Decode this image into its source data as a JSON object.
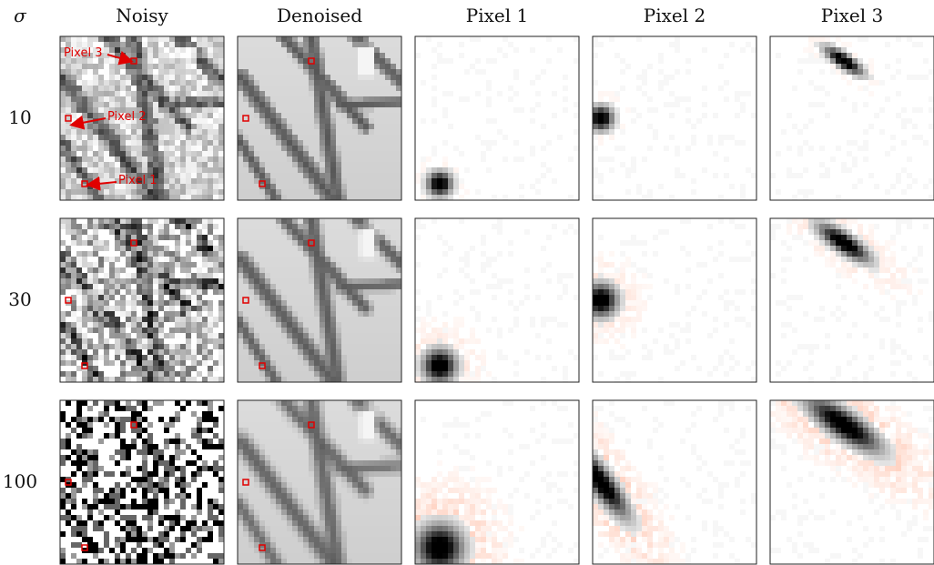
{
  "figure": {
    "sigma_symbol": "σ",
    "columns": [
      "Noisy",
      "Denoised",
      "Pixel 1",
      "Pixel 2",
      "Pixel 3"
    ],
    "rows": [
      "10",
      "30",
      "100"
    ],
    "callouts": [
      "Pixel 3",
      "Pixel 2",
      "Pixel 1"
    ],
    "marker_color": "#e00000"
  }
}
